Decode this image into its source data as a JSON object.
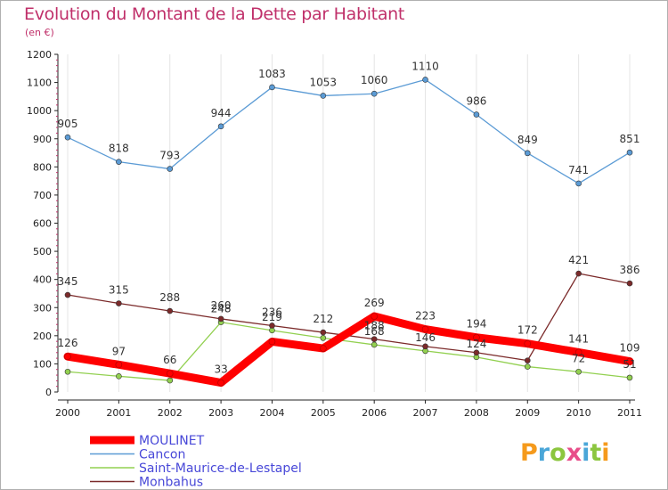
{
  "title": "Evolution du Montant de la Dette par Habitant",
  "unit_label": "(en €)",
  "brand": "Proxiti",
  "brand_colors": [
    "#f59a1c",
    "#4aa6d8",
    "#8cc63f",
    "#e84e8a",
    "#4aa6d8",
    "#8cc63f",
    "#f59a1c"
  ],
  "chart_data": {
    "type": "line",
    "title": "Evolution du Montant de la Dette par Habitant",
    "ylabel": "(en €)",
    "xlabel": "",
    "ylim": [
      0,
      1200
    ],
    "yticks": [
      0,
      100,
      200,
      300,
      400,
      500,
      600,
      700,
      800,
      900,
      1000,
      1100,
      1200
    ],
    "grid": "vertical",
    "legend_position": "bottom-left",
    "x": [
      "2000",
      "2001",
      "2002",
      "2003",
      "2004",
      "2005",
      "2006",
      "2007",
      "2008",
      "2009",
      "2010",
      "2011"
    ],
    "series": [
      {
        "name": "MOULINET",
        "color": "#ff0000",
        "values": [
          126,
          97,
          66,
          33,
          179,
          155,
          269,
          223,
          194,
          172,
          141,
          109
        ],
        "labels": [
          "126",
          "97",
          "66",
          "33",
          "",
          "",
          "269",
          "223",
          "194",
          "172",
          "141",
          "109"
        ]
      },
      {
        "name": "Cancon",
        "color": "#5b9bd5",
        "values": [
          905,
          818,
          793,
          944,
          1083,
          1053,
          1060,
          1110,
          986,
          849,
          741,
          851
        ],
        "labels": [
          "905",
          "818",
          "793",
          "944",
          "1083",
          "1053",
          "1060",
          "1110",
          "986",
          "849",
          "741",
          "851"
        ]
      },
      {
        "name": "Saint-Maurice-de-Lestapel",
        "color": "#92d050",
        "values": [
          72,
          56,
          41,
          248,
          219,
          192,
          168,
          146,
          124,
          90,
          72,
          51
        ],
        "labels": [
          "",
          "",
          "",
          "248",
          "219",
          "",
          "168",
          "146",
          "124",
          "",
          "72",
          "51"
        ]
      },
      {
        "name": "Monbahus",
        "color": "#7b2a2a",
        "values": [
          345,
          315,
          288,
          260,
          236,
          212,
          188,
          162,
          140,
          112,
          421,
          386
        ],
        "labels": [
          "345",
          "315",
          "288",
          "260",
          "236",
          "212",
          "188",
          "",
          "",
          "",
          "421",
          "386"
        ]
      }
    ]
  }
}
